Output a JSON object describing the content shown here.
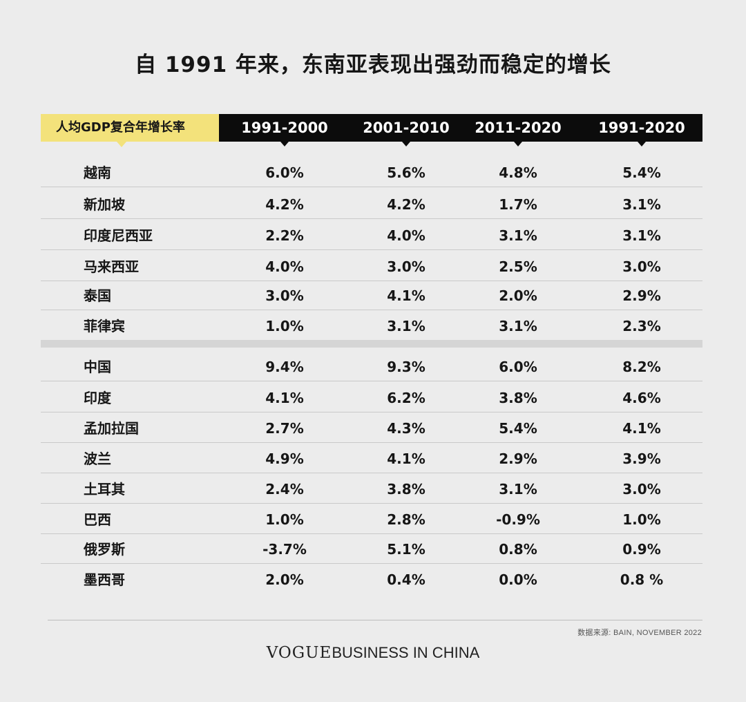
{
  "title": "自 1991 年来，东南亚表现出强劲而稳定的增长",
  "chart_data": {
    "type": "table",
    "row_header": "人均GDP复合年增长率",
    "columns": [
      "1991-2000",
      "2001-2010",
      "2011-2020",
      "1991-2020"
    ],
    "groups": [
      {
        "rows": [
          {
            "country": "越南",
            "values": [
              "6.0%",
              "5.6%",
              "4.8%",
              "5.4%"
            ]
          },
          {
            "country": "新加坡",
            "values": [
              "4.2%",
              "4.2%",
              "1.7%",
              "3.1%"
            ]
          },
          {
            "country": "印度尼西亚",
            "values": [
              "2.2%",
              "4.0%",
              "3.1%",
              "3.1%"
            ]
          },
          {
            "country": "马来西亚",
            "values": [
              "4.0%",
              "3.0%",
              "2.5%",
              "3.0%"
            ]
          },
          {
            "country": "泰国",
            "values": [
              "3.0%",
              "4.1%",
              "2.0%",
              "2.9%"
            ]
          },
          {
            "country": "菲律宾",
            "values": [
              "1.0%",
              "3.1%",
              "3.1%",
              "2.3%"
            ]
          }
        ]
      },
      {
        "rows": [
          {
            "country": "中国",
            "values": [
              "9.4%",
              "9.3%",
              "6.0%",
              "8.2%"
            ]
          },
          {
            "country": "印度",
            "values": [
              "4.1%",
              "6.2%",
              "3.8%",
              "4.6%"
            ]
          },
          {
            "country": "孟加拉国",
            "values": [
              "2.7%",
              "4.3%",
              "5.4%",
              "4.1%"
            ]
          },
          {
            "country": "波兰",
            "values": [
              "4.9%",
              "4.1%",
              "2.9%",
              "3.9%"
            ]
          },
          {
            "country": "土耳其",
            "values": [
              "2.4%",
              "3.8%",
              "3.1%",
              "3.0%"
            ]
          },
          {
            "country": "巴西",
            "values": [
              "1.0%",
              "2.8%",
              "-0.9%",
              "1.0%"
            ]
          },
          {
            "country": "俄罗斯",
            "values": [
              "-3.7%",
              "5.1%",
              "0.8%",
              "0.9%"
            ]
          },
          {
            "country": "墨西哥",
            "values": [
              "2.0%",
              "0.4%",
              "0.0%",
              "0.8 %"
            ]
          }
        ]
      }
    ]
  },
  "source": "数据来源: BAIN, NOVEMBER 2022",
  "brand": {
    "vogue": "VOGUE",
    "rest": "BUSINESS IN CHINA"
  },
  "colors": {
    "header_label_bg": "#f3e27b",
    "header_bg": "#0c0c0c",
    "background": "#ececec"
  }
}
